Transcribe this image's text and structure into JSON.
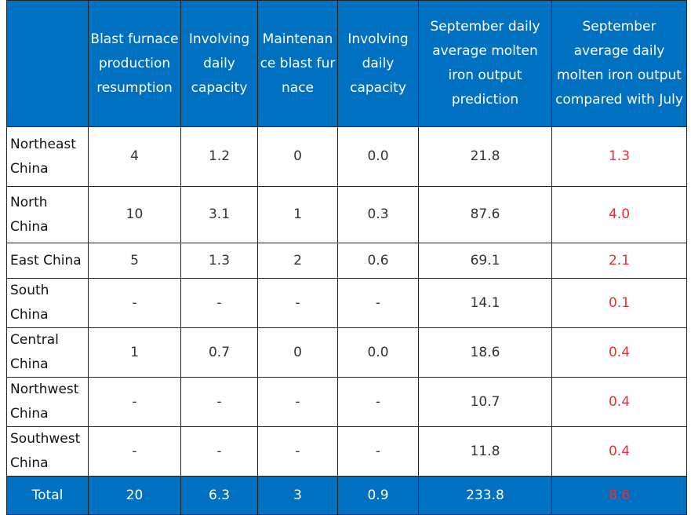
{
  "table": {
    "columns": [
      "Blast furnace production resumption",
      "Involving daily capacity",
      "Maintenance blast furnace",
      "Involving daily capacity",
      "September daily average molten iron output prediction",
      "September average daily molten iron output compared with July"
    ],
    "rows": [
      {
        "label": "Northeast China",
        "cells": [
          "4",
          "1.2",
          "0",
          "0.0",
          "21.8",
          "1.3"
        ]
      },
      {
        "label": "North China",
        "cells": [
          "10",
          "3.1",
          "1",
          "0.3",
          "87.6",
          "4.0"
        ]
      },
      {
        "label": "East China",
        "cells": [
          "5",
          "1.3",
          "2",
          "0.6",
          "69.1",
          "2.1"
        ]
      },
      {
        "label": "South China",
        "cells": [
          "-",
          "-",
          "-",
          "-",
          "14.1",
          "0.1"
        ]
      },
      {
        "label": "Central China",
        "cells": [
          "1",
          "0.7",
          "0",
          "0.0",
          "18.6",
          "0.4"
        ]
      },
      {
        "label": "Northwest China",
        "cells": [
          "-",
          "-",
          "-",
          "-",
          "10.7",
          "0.4"
        ]
      },
      {
        "label": "Southwest China",
        "cells": [
          "-",
          "-",
          "-",
          "-",
          "11.8",
          "0.4"
        ]
      }
    ],
    "total": {
      "label": "Total",
      "cells": [
        "20",
        "6.3",
        "3",
        "0.9",
        "233.8",
        "8.6"
      ]
    }
  }
}
